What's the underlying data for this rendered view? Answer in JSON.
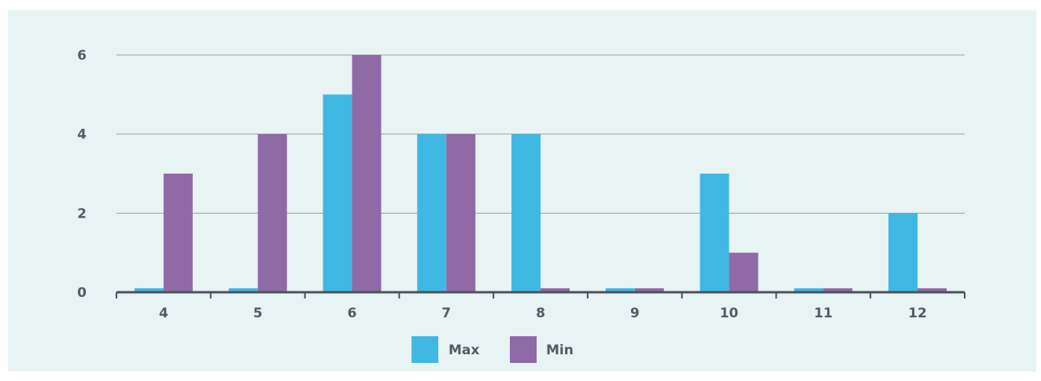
{
  "chart_data": {
    "type": "bar",
    "categories": [
      "4",
      "5",
      "6",
      "7",
      "8",
      "9",
      "10",
      "11",
      "12"
    ],
    "series": [
      {
        "name": "Max",
        "values": [
          0.1,
          0.1,
          5,
          4,
          4,
          0.1,
          3,
          0.1,
          2
        ]
      },
      {
        "name": "Min",
        "values": [
          3,
          4,
          6,
          4,
          0.1,
          0.1,
          1,
          0.1,
          0.1
        ]
      }
    ],
    "yticks": [
      "0",
      "2",
      "4",
      "6"
    ],
    "ylim": [
      0,
      6
    ],
    "grid": true,
    "legend_position": "bottom-center",
    "colors": {
      "Max": "#40b8e4",
      "Min": "#8f6aa6",
      "background": "#e8f3f4",
      "axis": "#4d5158",
      "text": "#555a63"
    }
  }
}
